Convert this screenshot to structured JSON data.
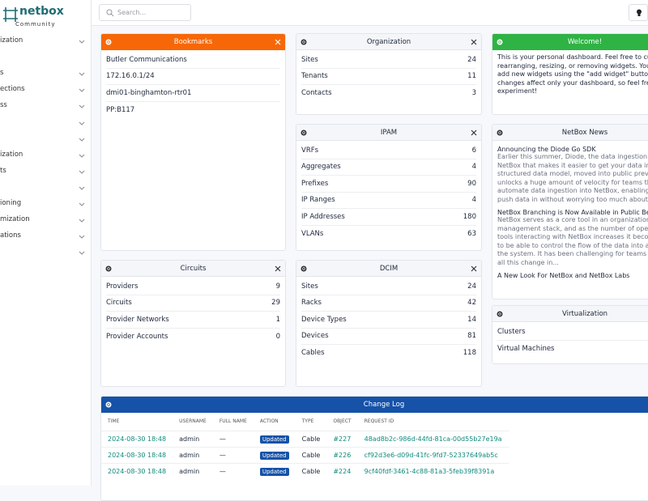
{
  "logo": {
    "name": "netbox",
    "edition": "Community"
  },
  "header": {
    "search_placeholder": "Search..."
  },
  "sidebar": [
    "ization",
    "s",
    "ections",
    "ss",
    "ization",
    "ts",
    "ioning",
    "mization",
    "ations"
  ],
  "bookmarks": {
    "title": "Bookmarks",
    "items": [
      "Butler Communications",
      "172.16.0.1/24",
      "dmi01-binghamton-rtr01",
      "PP:B117"
    ]
  },
  "organization": {
    "title": "Organization",
    "rows": [
      [
        "Sites",
        24
      ],
      [
        "Tenants",
        11
      ],
      [
        "Contacts",
        3
      ]
    ]
  },
  "welcome": {
    "title": "Welcome!",
    "lines": [
      "This is your personal dashboard. Feel free to custon",
      "rearranging, resizing, or removing widgets. You can",
      "add new widgets using the \"add widget\" button be",
      "changes affect only your dashboard, so feel free to",
      "experiment!"
    ]
  },
  "ipam": {
    "title": "IPAM",
    "rows": [
      [
        "VRFs",
        6
      ],
      [
        "Aggregates",
        4
      ],
      [
        "Prefixes",
        90
      ],
      [
        "IP Ranges",
        4
      ],
      [
        "IP Addresses",
        180
      ],
      [
        "VLANs",
        63
      ]
    ]
  },
  "netbox_news": {
    "title": "NetBox News",
    "items": [
      {
        "title": "Announcing the Diode Go SDK",
        "lines": [
          "Earlier this summer, Diode, the data ingestion engi",
          "NetBox that makes it easier to get your data into Ne",
          "structured data model, moved into public preview",
          "unlocks a huge amount of velocity for teams that",
          "automate data ingestion into NetBox, enabling you",
          "push data in without worrying too much about orde"
        ]
      },
      {
        "title": "NetBox Branching is Now Available in Public Beta",
        "lines": [
          "NetBox serves as a core tool in an organization's ne",
          "management stack, and as the number of operato",
          "tools interacting with NetBox increases it become",
          "to be able to control the flow of the data into and o",
          "the system. It has been challenging for teams to ma",
          "all this change in..."
        ]
      },
      {
        "title": "A New Look For NetBox and NetBox Labs",
        "lines": []
      }
    ]
  },
  "circuits": {
    "title": "Circuits",
    "rows": [
      [
        "Providers",
        9
      ],
      [
        "Circuits",
        29
      ],
      [
        "Provider Networks",
        1
      ],
      [
        "Provider Accounts",
        0
      ]
    ]
  },
  "dcim": {
    "title": "DCIM",
    "rows": [
      [
        "Sites",
        24
      ],
      [
        "Racks",
        42
      ],
      [
        "Device Types",
        14
      ],
      [
        "Devices",
        81
      ],
      [
        "Cables",
        118
      ]
    ]
  },
  "virtualization": {
    "title": "Virtualization",
    "items": [
      "Clusters",
      "Virtual Machines"
    ]
  },
  "change_log": {
    "title": "Change Log",
    "columns": [
      "TIME",
      "USERNAME",
      "FULL NAME",
      "ACTION",
      "TYPE",
      "OBJECT",
      "REQUEST ID"
    ],
    "rows": [
      [
        "2024-08-30 18:48",
        "admin",
        "—",
        "Updated",
        "Cable",
        "#227",
        "48ad8b2c-986d-44fd-81ca-00d55b27e19a"
      ],
      [
        "2024-08-30 18:48",
        "admin",
        "—",
        "Updated",
        "Cable",
        "#226",
        "cf92d3e6-d09d-41fc-9fd7-52337649ab5c"
      ],
      [
        "2024-08-30 18:48",
        "admin",
        "—",
        "Updated",
        "Cable",
        "#224",
        "9cf40fdf-3461-4c88-81a3-5feb39f8391a"
      ]
    ]
  }
}
